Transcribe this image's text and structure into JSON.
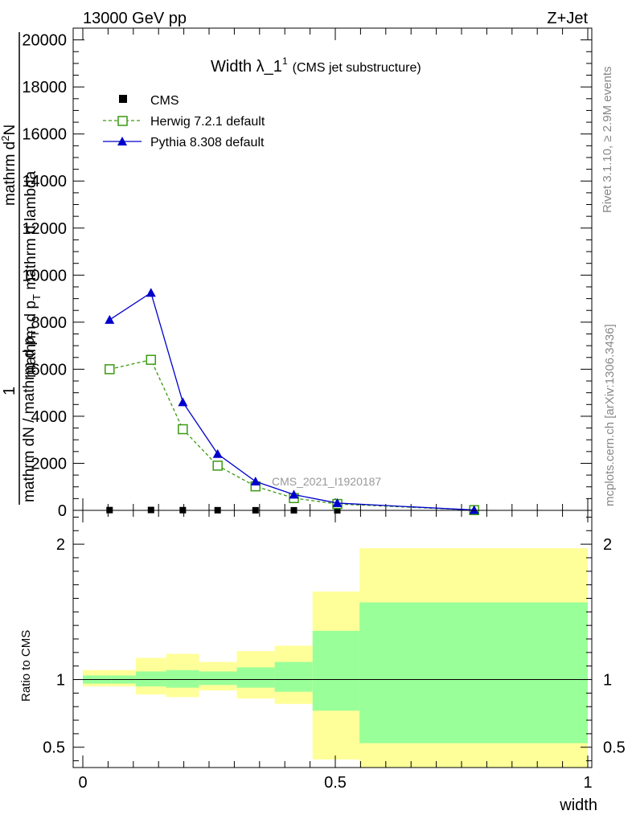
{
  "header": {
    "left": "13000 GeV pp",
    "right": "Z+Jet"
  },
  "side_labels": {
    "rivet": "Rivet 3.1.10, ≥ 2.9M events",
    "mcplots": "mcplots.cern.ch [arXiv:1306.3436]"
  },
  "watermark": "CMS_2021_I1920187",
  "colors": {
    "cms": "#000000",
    "herwig": "#3a9a10",
    "pythia": "#0000cc",
    "band_inner": "#99ff99",
    "band_outer": "#ffff99"
  },
  "chart_data": [
    {
      "type": "line",
      "title_main": "Width λ_1",
      "title_sup": "1",
      "title_sub": "(CMS jet substructure)",
      "ylabel_num": "1",
      "ylabel_den": "mathrm dN / mathrm d p",
      "ylabel_den_sub": "T",
      "ylabel_right": "mathrm d",
      "ylabel_right_sup": "2",
      "ylabel_right_rest": "N",
      "ylabel_right2": "mathrm d p",
      "ylabel_right2_sub": "T",
      "ylabel_right2_rest": " mathrm d lambda",
      "xlim": [
        0,
        1
      ],
      "ylim": [
        0,
        20500
      ],
      "yticks": [
        {
          "v": 0,
          "label": "0"
        },
        {
          "v": 2000,
          "label": "2000"
        },
        {
          "v": 4000,
          "label": "4000"
        },
        {
          "v": 6000,
          "label": "6000"
        },
        {
          "v": 8000,
          "label": "8000"
        },
        {
          "v": 10000,
          "label": "10000"
        },
        {
          "v": 12000,
          "label": "12000"
        },
        {
          "v": 14000,
          "label": "14000"
        },
        {
          "v": 16000,
          "label": "16000"
        },
        {
          "v": 18000,
          "label": "18000"
        },
        {
          "v": 20000,
          "label": "20000"
        }
      ],
      "legend": {
        "placement": "top-left",
        "entries": [
          {
            "label": "CMS",
            "key": "cms"
          },
          {
            "label": "Herwig 7.2.1 default",
            "key": "herwig"
          },
          {
            "label": "Pythia 8.308 default",
            "key": "pythia"
          }
        ]
      },
      "series": [
        {
          "name": "CMS",
          "key": "cms",
          "x": [
            0.053,
            0.135,
            0.198,
            0.267,
            0.342,
            0.418,
            0.504,
            0.775
          ],
          "y": [
            12,
            16,
            9,
            6,
            4,
            3,
            2,
            1
          ]
        },
        {
          "name": "Herwig 7.2.1 default",
          "key": "herwig",
          "x": [
            0.053,
            0.135,
            0.198,
            0.267,
            0.342,
            0.418,
            0.504,
            0.775
          ],
          "y": [
            6000,
            6400,
            3450,
            1900,
            1020,
            520,
            270,
            10
          ]
        },
        {
          "name": "Pythia 8.308 default",
          "key": "pythia",
          "x": [
            0.053,
            0.135,
            0.198,
            0.267,
            0.342,
            0.418,
            0.504,
            0.775
          ],
          "y": [
            8100,
            9250,
            4600,
            2400,
            1230,
            670,
            310,
            15
          ]
        }
      ]
    },
    {
      "type": "area",
      "ylabel": "Ratio to CMS",
      "xlabel": "width",
      "xlim": [
        0,
        1
      ],
      "ylim": [
        0.35,
        2.25
      ],
      "yticks": [
        {
          "v": 0.5,
          "label": "0.5"
        },
        {
          "v": 1,
          "label": "1"
        },
        {
          "v": 2,
          "label": "2"
        }
      ],
      "xticks": [
        {
          "v": 0,
          "label": "0"
        },
        {
          "v": 0.5,
          "label": "0.5"
        },
        {
          "v": 1,
          "label": "1"
        }
      ],
      "reference_line": 1,
      "bands": [
        {
          "x0": 0.0,
          "x1": 0.057,
          "outer": [
            0.95,
            1.07
          ],
          "inner": [
            0.97,
            1.03
          ]
        },
        {
          "x0": 0.057,
          "x1": 0.105,
          "outer": [
            0.95,
            1.07
          ],
          "inner": [
            0.97,
            1.03
          ]
        },
        {
          "x0": 0.105,
          "x1": 0.165,
          "outer": [
            0.89,
            1.16
          ],
          "inner": [
            0.95,
            1.06
          ]
        },
        {
          "x0": 0.165,
          "x1": 0.23,
          "outer": [
            0.87,
            1.19
          ],
          "inner": [
            0.94,
            1.07
          ]
        },
        {
          "x0": 0.23,
          "x1": 0.305,
          "outer": [
            0.92,
            1.13
          ],
          "inner": [
            0.96,
            1.06
          ]
        },
        {
          "x0": 0.305,
          "x1": 0.38,
          "outer": [
            0.86,
            1.21
          ],
          "inner": [
            0.94,
            1.09
          ]
        },
        {
          "x0": 0.38,
          "x1": 0.455,
          "outer": [
            0.82,
            1.25
          ],
          "inner": [
            0.91,
            1.13
          ]
        },
        {
          "x0": 0.455,
          "x1": 0.548,
          "outer": [
            0.41,
            1.65
          ],
          "inner": [
            0.77,
            1.36
          ]
        },
        {
          "x0": 0.548,
          "x1": 1.0,
          "outer": [
            0.35,
            1.97
          ],
          "inner": [
            0.53,
            1.57
          ]
        }
      ]
    }
  ]
}
